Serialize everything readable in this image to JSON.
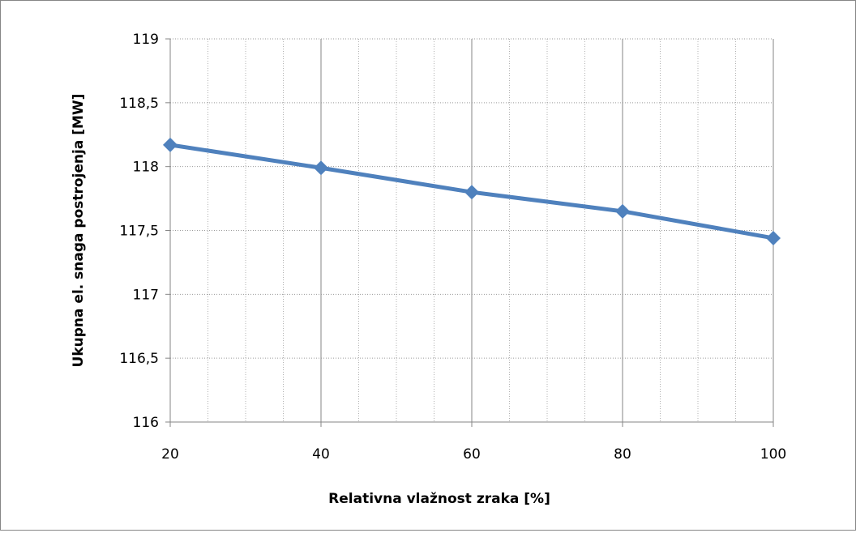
{
  "chart_data": {
    "type": "line",
    "title": "",
    "xlabel": "Relativna vlažnost zraka [%]",
    "ylabel": "Ukupna el. snaga postrojenja [MW]",
    "x": [
      20,
      40,
      60,
      80,
      100
    ],
    "series": [
      {
        "values": [
          118.17,
          117.99,
          117.8,
          117.65,
          117.44
        ],
        "color": "#4f81bd",
        "marker": "diamond"
      }
    ],
    "xlim": [
      20,
      100
    ],
    "ylim": [
      116,
      119
    ],
    "xticks": [
      "20",
      "40",
      "60",
      "80",
      "100"
    ],
    "yticks": [
      "116",
      "116,5",
      "117",
      "117,5",
      "118",
      "118,5",
      "119"
    ],
    "grid": true,
    "legend": "none"
  }
}
